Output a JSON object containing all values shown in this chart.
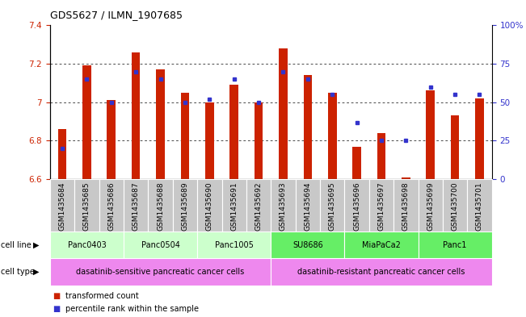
{
  "title": "GDS5627 / ILMN_1907685",
  "samples": [
    "GSM1435684",
    "GSM1435685",
    "GSM1435686",
    "GSM1435687",
    "GSM1435688",
    "GSM1435689",
    "GSM1435690",
    "GSM1435691",
    "GSM1435692",
    "GSM1435693",
    "GSM1435694",
    "GSM1435695",
    "GSM1435696",
    "GSM1435697",
    "GSM1435698",
    "GSM1435699",
    "GSM1435700",
    "GSM1435701"
  ],
  "bar_values": [
    6.86,
    7.19,
    7.01,
    7.26,
    7.17,
    7.05,
    7.0,
    7.09,
    7.0,
    7.28,
    7.14,
    7.05,
    6.77,
    6.84,
    6.61,
    7.06,
    6.93,
    7.02
  ],
  "dot_values": [
    20,
    65,
    50,
    70,
    65,
    50,
    52,
    65,
    50,
    70,
    65,
    55,
    37,
    25,
    25,
    60,
    55,
    55
  ],
  "ylim_left": [
    6.6,
    7.4
  ],
  "ylim_right": [
    0,
    100
  ],
  "yticks_left": [
    6.6,
    6.8,
    7.0,
    7.2,
    7.4
  ],
  "yticks_right": [
    0,
    25,
    50,
    75,
    100
  ],
  "bar_color": "#cc2200",
  "dot_color": "#3333cc",
  "cell_lines": [
    {
      "name": "Panc0403",
      "start": 0,
      "end": 2,
      "color": "#ccffcc"
    },
    {
      "name": "Panc0504",
      "start": 3,
      "end": 5,
      "color": "#ccffcc"
    },
    {
      "name": "Panc1005",
      "start": 6,
      "end": 8,
      "color": "#ccffcc"
    },
    {
      "name": "SU8686",
      "start": 9,
      "end": 11,
      "color": "#66ee66"
    },
    {
      "name": "MiaPaCa2",
      "start": 12,
      "end": 14,
      "color": "#66ee66"
    },
    {
      "name": "Panc1",
      "start": 15,
      "end": 17,
      "color": "#66ee66"
    }
  ],
  "cell_types": [
    {
      "name": "dasatinib-sensitive pancreatic cancer cells",
      "start": 0,
      "end": 8,
      "color": "#ee88ee"
    },
    {
      "name": "dasatinib-resistant pancreatic cancer cells",
      "start": 9,
      "end": 17,
      "color": "#ee88ee"
    }
  ],
  "sample_bg_color": "#c8c8c8",
  "sample_border_color": "#ffffff",
  "legend_bar_label": "transformed count",
  "legend_dot_label": "percentile rank within the sample",
  "bar_width": 0.35,
  "title_fontsize": 9,
  "tick_fontsize": 7.5,
  "label_fontsize": 6.5
}
